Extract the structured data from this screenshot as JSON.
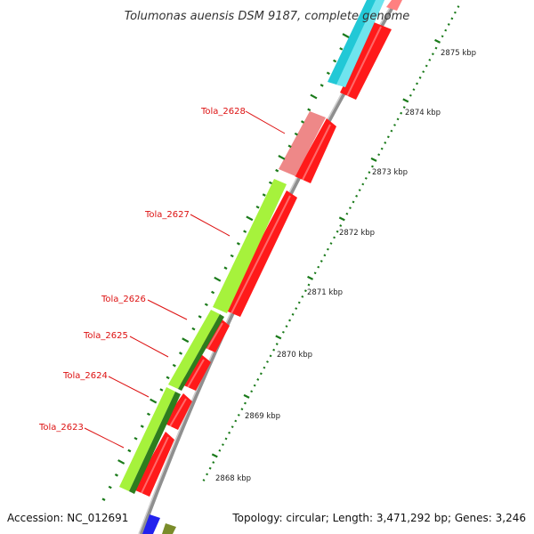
{
  "header": {
    "title": "Tolumonas auensis DSM 9187, complete genome"
  },
  "footer": {
    "accession": "Accession: NC_012691",
    "topology": "Topology: circular; Length: 3,471,292 bp; Genes: 3,246"
  },
  "scale": {
    "unit": "kbp",
    "ticks": [
      {
        "pos": 2868,
        "label": "2868 kbp"
      },
      {
        "pos": 2869,
        "label": "2869 kbp"
      },
      {
        "pos": 2870,
        "label": "2870 kbp"
      },
      {
        "pos": 2871,
        "label": "2871 kbp"
      },
      {
        "pos": 2872,
        "label": "2872 kbp"
      },
      {
        "pos": 2873,
        "label": "2873 kbp"
      },
      {
        "pos": 2874,
        "label": "2874 kbp"
      },
      {
        "pos": 2875,
        "label": "2875 kbp"
      }
    ]
  },
  "genes": [
    {
      "label": "Tola_2623"
    },
    {
      "label": "Tola_2624"
    },
    {
      "label": "Tola_2625"
    },
    {
      "label": "Tola_2626"
    },
    {
      "label": "Tola_2627"
    },
    {
      "label": "Tola_2628"
    }
  ],
  "colors": {
    "cds": "#ff1a1a",
    "cog_light_green": "#a6f23c",
    "cog_dark_green": "#2e7d1e",
    "cog_pink": "#ee8888",
    "cog_cyan": "#22c8d6",
    "cog_blue": "#2222ee",
    "cog_olive": "#7a8c2a",
    "backbone": "#999999",
    "tick": "#1a7a1a",
    "label": "#dd1111"
  }
}
